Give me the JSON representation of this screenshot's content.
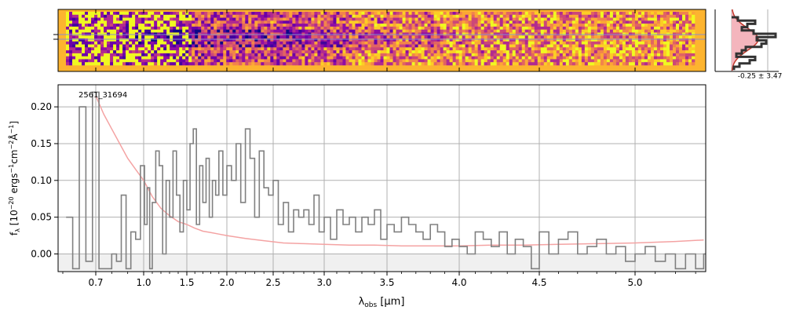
{
  "figure": {
    "object_id": "2561_31694",
    "hist_label": "-0.25 ± 3.47",
    "xlabel_main": "λ",
    "xlabel_sub": "obs",
    "xlabel_unit": " [μm]",
    "ylabel": "f_λ [10^-20 ergs^-1 cm^-2 Å^-1]"
  },
  "colors": {
    "spectrum": "#808080",
    "error": "#f4a3a3",
    "grid": "#b0b0b0",
    "zero_band": "#f0f0f0",
    "hist_fill": "#f4b5bd",
    "hist_model": "#c0392b",
    "hist_data": "#333333",
    "frame_bg": "#fdb42f"
  },
  "chart_data": [
    {
      "type": "heatmap",
      "name": "2D spectrum",
      "colormap": "plasma",
      "x_axis": "shared wavelength axis (ticks only, no labels)",
      "trace_lines": "two horizontal lines at center rows"
    },
    {
      "type": "line",
      "name": "1D spectrum",
      "xscale": "nonlinear (spectral-resolution scaled)",
      "xlim": [
        0.6,
        5.35
      ],
      "ylim": [
        -0.024,
        0.23
      ],
      "xticks": [
        0.7,
        1.0,
        1.5,
        2.0,
        2.5,
        3.0,
        3.5,
        4.0,
        4.5,
        5.0
      ],
      "xtick_labels": [
        "0.7",
        "1.0",
        "1.5",
        "2.0",
        "2.5",
        "3.0",
        "3.5",
        "4.0",
        "4.5",
        "5.0"
      ],
      "yticks": [
        0.0,
        0.05,
        0.1,
        0.15,
        0.2
      ],
      "ytick_labels": [
        "0.00",
        "0.05",
        "0.10",
        "0.15",
        "0.20"
      ],
      "grid": true,
      "series": [
        {
          "label": "flux",
          "style": "steps",
          "x": [
            0.61,
            0.63,
            0.65,
            0.67,
            0.69,
            0.72,
            0.75,
            0.78,
            0.8,
            0.83,
            0.86,
            0.89,
            0.92,
            0.95,
            0.98,
            1.01,
            1.04,
            1.07,
            1.1,
            1.14,
            1.18,
            1.22,
            1.26,
            1.3,
            1.34,
            1.38,
            1.42,
            1.46,
            1.5,
            1.54,
            1.58,
            1.62,
            1.66,
            1.7,
            1.74,
            1.78,
            1.82,
            1.86,
            1.9,
            1.95,
            2.0,
            2.05,
            2.1,
            2.15,
            2.2,
            2.25,
            2.3,
            2.35,
            2.4,
            2.45,
            2.5,
            2.55,
            2.6,
            2.65,
            2.7,
            2.75,
            2.8,
            2.85,
            2.9,
            2.95,
            3.0,
            3.05,
            3.1,
            3.15,
            3.2,
            3.25,
            3.3,
            3.35,
            3.4,
            3.45,
            3.5,
            3.55,
            3.6,
            3.65,
            3.7,
            3.75,
            3.8,
            3.85,
            3.9,
            3.95,
            4.0,
            4.05,
            4.1,
            4.15,
            4.2,
            4.25,
            4.3,
            4.35,
            4.4,
            4.45,
            4.5,
            4.55,
            4.6,
            4.65,
            4.7,
            4.75,
            4.8,
            4.85,
            4.9,
            4.95,
            5.0,
            5.05,
            5.1,
            5.15,
            5.2,
            5.25,
            5.3,
            5.34
          ],
          "y": [
            0.05,
            -0.02,
            0.2,
            -0.01,
            0.22,
            -0.02,
            -0.02,
            -0.02,
            0.0,
            -0.01,
            0.08,
            -0.02,
            0.03,
            0.02,
            0.12,
            0.04,
            0.09,
            -0.02,
            0.07,
            0.14,
            0.12,
            0.0,
            0.1,
            0.05,
            0.14,
            0.08,
            0.03,
            0.1,
            0.06,
            0.15,
            0.17,
            0.04,
            0.12,
            0.07,
            0.13,
            0.05,
            0.1,
            0.08,
            0.14,
            0.08,
            0.12,
            0.1,
            0.15,
            0.07,
            0.17,
            0.13,
            0.05,
            0.14,
            0.09,
            0.08,
            0.1,
            0.04,
            0.07,
            0.03,
            0.06,
            0.05,
            0.06,
            0.04,
            0.08,
            0.03,
            0.05,
            0.02,
            0.06,
            0.04,
            0.05,
            0.03,
            0.05,
            0.04,
            0.06,
            0.02,
            0.04,
            0.03,
            0.05,
            0.04,
            0.03,
            0.02,
            0.04,
            0.03,
            0.01,
            0.02,
            0.01,
            0.0,
            0.03,
            0.02,
            0.01,
            0.03,
            0.0,
            0.02,
            0.01,
            -0.02,
            0.03,
            0.0,
            0.02,
            0.03,
            0.0,
            0.01,
            0.02,
            0.0,
            0.01,
            -0.01,
            0.0,
            0.01,
            -0.01,
            0.0,
            -0.02,
            0.0,
            -0.02,
            0.0
          ]
        },
        {
          "label": "error",
          "style": "line",
          "x": [
            0.7,
            0.75,
            0.8,
            0.85,
            0.9,
            0.95,
            1.0,
            1.1,
            1.2,
            1.3,
            1.4,
            1.5,
            1.6,
            1.7,
            1.8,
            1.9,
            2.0,
            2.2,
            2.4,
            2.6,
            2.8,
            3.0,
            3.2,
            3.4,
            3.6,
            3.8,
            4.0,
            4.2,
            4.4,
            4.6,
            4.8,
            5.0,
            5.2,
            5.34
          ],
          "y": [
            0.215,
            0.19,
            0.17,
            0.15,
            0.13,
            0.115,
            0.1,
            0.078,
            0.062,
            0.052,
            0.044,
            0.04,
            0.035,
            0.031,
            0.029,
            0.027,
            0.025,
            0.021,
            0.018,
            0.015,
            0.014,
            0.013,
            0.012,
            0.012,
            0.011,
            0.011,
            0.011,
            0.012,
            0.012,
            0.013,
            0.014,
            0.015,
            0.017,
            0.019
          ]
        }
      ]
    },
    {
      "type": "bar",
      "name": "pixel histogram",
      "orientation": "horizontal",
      "note": "step histogram of normalized pixel values with gaussian model"
    }
  ]
}
